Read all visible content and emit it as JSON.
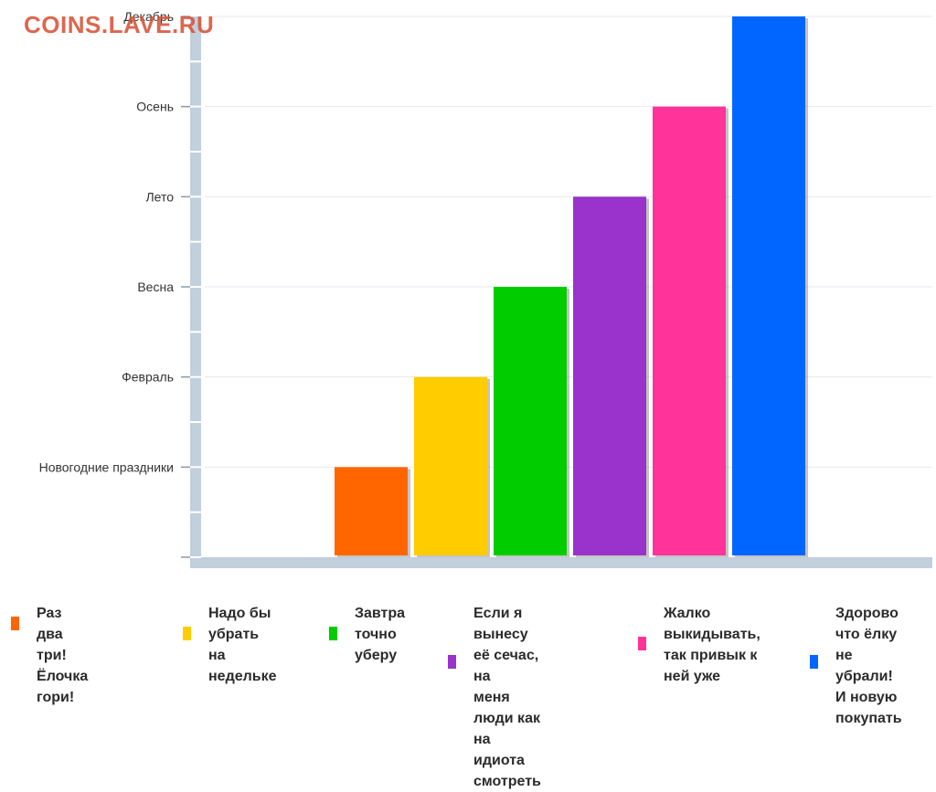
{
  "watermark": "COINS.LAVE.RU",
  "chart_data": {
    "type": "bar",
    "title": "",
    "xlabel": "",
    "ylabel": "",
    "yticks": [
      "",
      "Новогодние праздники",
      "Февраль",
      "Весна",
      "Лето",
      "Осень",
      "Декабрь"
    ],
    "ylim": [
      0,
      6
    ],
    "grid": true,
    "legend_position": "bottom",
    "categories": [
      "Раз два три!\nЁлочка гори!",
      "Надо бы\nубрать на\nнедельке",
      "Завтра\nточно\nуберу",
      "Если я вынесу\nеё сечас, на\nменя люди как\nна идиота\nсмотреть",
      "Жалко\nвыкидывать,\nтак привык к\nней уже",
      "Здорово\nчто ёлку\nне убрали!\nИ новую\nпокупать"
    ],
    "values": [
      1,
      2,
      3,
      4,
      5,
      6
    ],
    "colors": [
      "#ff6600",
      "#ffcc00",
      "#00cc00",
      "#9933cc",
      "#ff3399",
      "#0066ff"
    ]
  }
}
